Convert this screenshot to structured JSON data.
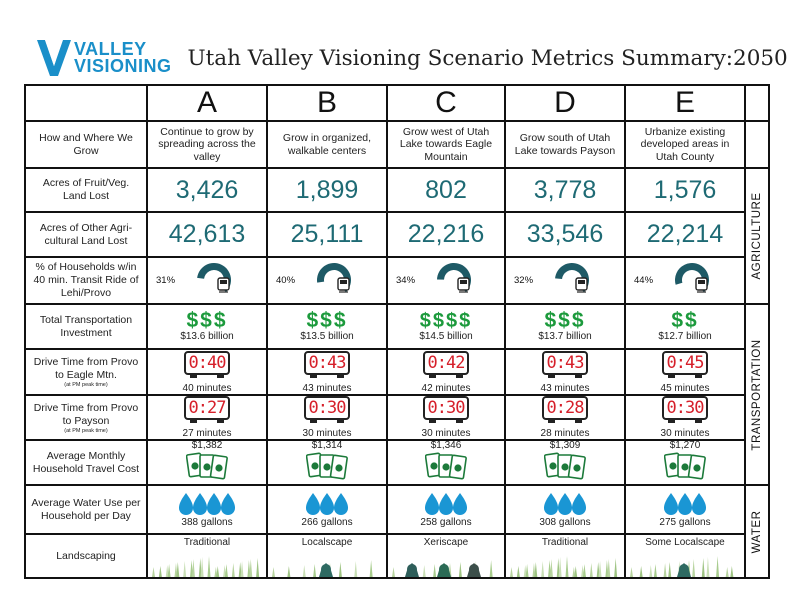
{
  "brand": {
    "line1": "VALLEY",
    "line2": "VISIONING",
    "color": "#1a8fc9"
  },
  "title": "Utah Valley Visioning Scenario Metrics Summary:2050",
  "row_labels": {
    "how": "How and Where We Grow",
    "fruit": "Acres of Fruit/Veg. Land Lost",
    "ag": "Acres of Other Agri-cultural Land Lost",
    "transit": "% of Households w/in 40 min. Transit Ride of Lehi/Provo",
    "invest": "Total Transportation Investment",
    "eagle": "Drive Time from Provo to Eagle Mtn.",
    "eagle_note": "(at PM peak time)",
    "payson": "Drive Time from Provo to Payson",
    "payson_note": "(at PM peak time)",
    "travel": "Average Monthly Household Travel Cost",
    "water": "Average Water Use per Household per Day",
    "landscaping": "Landscaping"
  },
  "sections": {
    "agriculture": "AGRICULTURE",
    "transportation": "TRANSPORTATION",
    "water": "WATER"
  },
  "scenarios": [
    {
      "letter": "A",
      "desc": "Continue to grow by spreading across the valley",
      "fruit": "3,426",
      "ag": "42,613",
      "transit": "31%",
      "transit_frac": 0.31,
      "dollar_signs": "$$$",
      "invest": "$13.6 billion",
      "eagle_clock": "0:40",
      "eagle_text": "40 minutes",
      "payson_clock": "0:27",
      "payson_text": "27 minutes",
      "travel": "$1,382",
      "bills": 3,
      "water_drops": 4,
      "water": "388 gallons",
      "landscaping": "Traditional"
    },
    {
      "letter": "B",
      "desc": "Grow in organized, walkable centers",
      "fruit": "1,899",
      "ag": "25,111",
      "transit": "40%",
      "transit_frac": 0.4,
      "dollar_signs": "$$$",
      "invest": "$13.5 billion",
      "eagle_clock": "0:43",
      "eagle_text": "43 minutes",
      "payson_clock": "0:30",
      "payson_text": "30 minutes",
      "travel": "$1,314",
      "bills": 3,
      "water_drops": 3,
      "water": "266 gallons",
      "landscaping": "Localscape"
    },
    {
      "letter": "C",
      "desc": "Grow west of Utah Lake towards Eagle Mountain",
      "fruit": "802",
      "ag": "22,216",
      "transit": "34%",
      "transit_frac": 0.34,
      "dollar_signs": "$$$$",
      "invest": "$14.5 billion",
      "eagle_clock": "0:42",
      "eagle_text": "42 minutes",
      "payson_clock": "0:30",
      "payson_text": "30 minutes",
      "travel": "$1,346",
      "bills": 3,
      "water_drops": 3,
      "water": "258 gallons",
      "landscaping": "Xeriscape"
    },
    {
      "letter": "D",
      "desc": "Grow south of Utah Lake towards Payson",
      "fruit": "3,778",
      "ag": "33,546",
      "transit": "32%",
      "transit_frac": 0.32,
      "dollar_signs": "$$$",
      "invest": "$13.7 billion",
      "eagle_clock": "0:43",
      "eagle_text": "43 minutes",
      "payson_clock": "0:28",
      "payson_text": "28 minutes",
      "travel": "$1,309",
      "bills": 3,
      "water_drops": 3,
      "water": "308 gallons",
      "landscaping": "Traditional"
    },
    {
      "letter": "E",
      "desc": "Urbanize existing developed areas in Utah County",
      "fruit": "1,576",
      "ag": "22,214",
      "transit": "44%",
      "transit_frac": 0.44,
      "dollar_signs": "$$",
      "invest": "$12.7 billion",
      "eagle_clock": "0:45",
      "eagle_text": "45 minutes",
      "payson_clock": "0:30",
      "payson_text": "30 minutes",
      "travel": "$1,270",
      "bills": 3,
      "water_drops": 3,
      "water": "275 gallons",
      "landscaping": "Some Localscape"
    }
  ],
  "colors": {
    "teal": "#1e6a74",
    "green": "#1c9a3c",
    "red": "#d61f2a",
    "water": "#1a96d4",
    "gauge": "#1e5a66"
  }
}
